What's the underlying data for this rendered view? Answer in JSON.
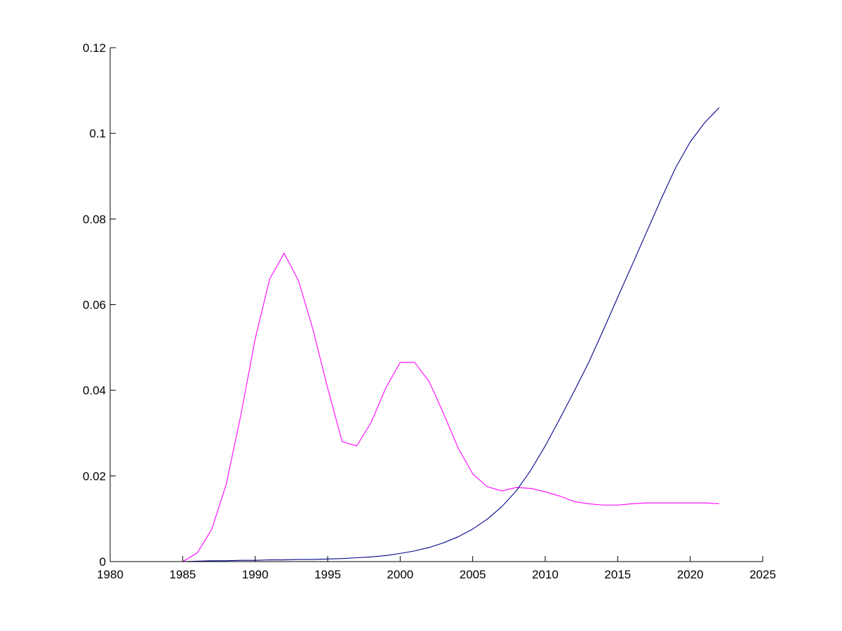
{
  "chart_data": {
    "type": "line",
    "title": "",
    "xlabel": "",
    "ylabel": "",
    "xlim": [
      1980,
      2025
    ],
    "ylim": [
      0,
      0.12
    ],
    "grid": false,
    "legend": "none",
    "xticks": [
      1980,
      1985,
      1990,
      1995,
      2000,
      2005,
      2010,
      2015,
      2020,
      2025
    ],
    "xtick_labels": [
      "1980",
      "1985",
      "1990",
      "1995",
      "2000",
      "2005",
      "2010",
      "2015",
      "2020",
      "2025"
    ],
    "yticks": [
      0,
      0.02,
      0.04,
      0.06,
      0.08,
      0.1,
      0.12
    ],
    "ytick_labels": [
      "0",
      "0.02",
      "0.04",
      "0.06",
      "0.08",
      "0.1",
      "0.12"
    ],
    "series": [
      {
        "color": "#ff00ff",
        "x": [
          1980,
          1981,
          1982,
          1983,
          1984,
          1985,
          1986,
          1987,
          1988,
          1989,
          1990,
          1991,
          1992,
          1993,
          1994,
          1995,
          1996,
          1997,
          1998,
          1999,
          2000,
          2001,
          2002,
          2003,
          2004,
          2005,
          2006,
          2007,
          2008,
          2009,
          2010,
          2011,
          2012,
          2013,
          2014,
          2015,
          2016,
          2017,
          2018,
          2019,
          2020,
          2021,
          2022
        ],
        "y": [
          0,
          0,
          0,
          0,
          0,
          0,
          0.002,
          0.0075,
          0.018,
          0.034,
          0.052,
          0.066,
          0.072,
          0.0655,
          0.054,
          0.0405,
          0.028,
          0.027,
          0.0325,
          0.0405,
          0.0465,
          0.0465,
          0.042,
          0.0345,
          0.0265,
          0.0205,
          0.0175,
          0.0165,
          0.0173,
          0.0171,
          0.0163,
          0.0153,
          0.014,
          0.0135,
          0.0132,
          0.0132,
          0.0135,
          0.0137,
          0.0137,
          0.0137,
          0.0137,
          0.0137,
          0.0135
        ]
      },
      {
        "color": "#00008b",
        "x": [
          1980,
          1981,
          1982,
          1983,
          1984,
          1985,
          1986,
          1987,
          1988,
          1989,
          1990,
          1991,
          1992,
          1993,
          1994,
          1995,
          1996,
          1997,
          1998,
          1999,
          2000,
          2001,
          2002,
          2003,
          2004,
          2005,
          2006,
          2007,
          2008,
          2009,
          2010,
          2011,
          2012,
          2013,
          2014,
          2015,
          2016,
          2017,
          2018,
          2019,
          2020,
          2021,
          2022
        ],
        "y": [
          0,
          0,
          0,
          0,
          0,
          0,
          0.0001,
          0.0002,
          0.0002,
          0.0003,
          0.0003,
          0.0004,
          0.0004,
          0.0005,
          0.0005,
          0.0006,
          0.0007,
          0.0009,
          0.0011,
          0.0014,
          0.0019,
          0.0025,
          0.0033,
          0.0044,
          0.0058,
          0.0076,
          0.0099,
          0.0128,
          0.0165,
          0.0213,
          0.027,
          0.0333,
          0.0398,
          0.0465,
          0.054,
          0.0617,
          0.0693,
          0.077,
          0.0847,
          0.092,
          0.098,
          0.1025,
          0.106
        ]
      }
    ]
  }
}
